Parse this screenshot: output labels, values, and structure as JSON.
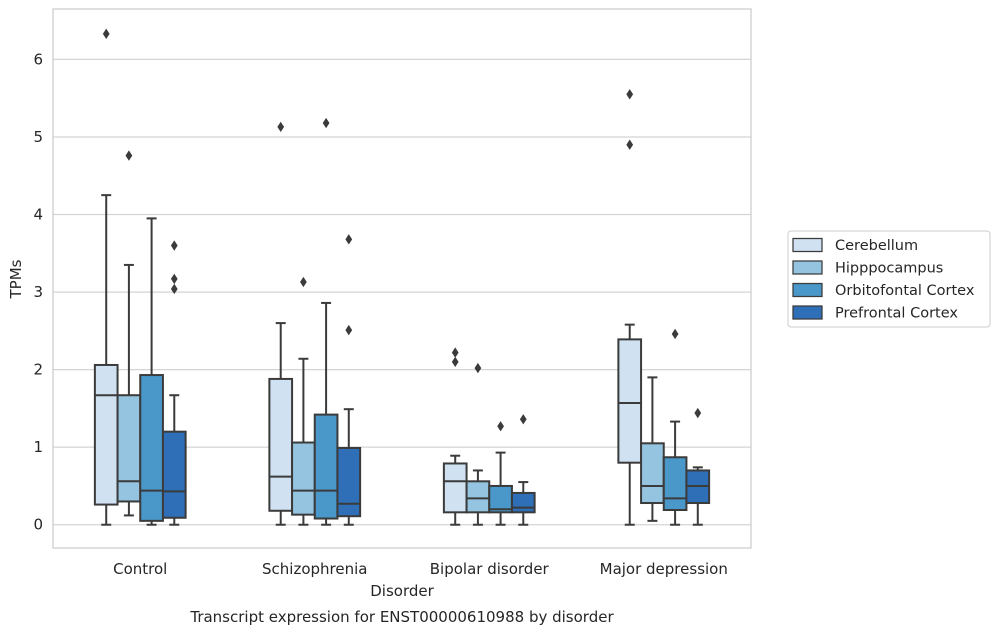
{
  "chart_data": {
    "type": "boxplot",
    "title": "",
    "caption": "Transcript expression for ENST00000610988 by disorder",
    "xlabel": "Disorder",
    "ylabel": "TPMs",
    "ylim": [
      -0.3,
      6.65
    ],
    "yticks": [
      0,
      1,
      2,
      3,
      4,
      5,
      6
    ],
    "grid": "horizontal",
    "legend_placement": "right",
    "categories": [
      "Control",
      "Schizophrenia",
      "Bipolar disorder",
      "Major depression"
    ],
    "series": [
      {
        "name": "Cerebellum",
        "color": "#d0e1f2",
        "boxes": [
          {
            "whislo": 0.0,
            "q1": 0.26,
            "med": 1.67,
            "q3": 2.06,
            "whishi": 4.25,
            "fliers": [
              6.33
            ]
          },
          {
            "whislo": 0.0,
            "q1": 0.18,
            "med": 0.62,
            "q3": 1.88,
            "whishi": 2.6,
            "fliers": [
              5.13
            ]
          },
          {
            "whislo": 0.0,
            "q1": 0.16,
            "med": 0.56,
            "q3": 0.79,
            "whishi": 0.89,
            "fliers": [
              2.22,
              2.1
            ]
          },
          {
            "whislo": 0.0,
            "q1": 0.8,
            "med": 1.57,
            "q3": 2.39,
            "whishi": 2.58,
            "fliers": [
              5.55,
              4.9
            ]
          }
        ]
      },
      {
        "name": "Hipppocampus",
        "color": "#94c4df",
        "boxes": [
          {
            "whislo": 0.12,
            "q1": 0.3,
            "med": 0.56,
            "q3": 1.67,
            "whishi": 3.35,
            "fliers": [
              4.76
            ]
          },
          {
            "whislo": 0.0,
            "q1": 0.13,
            "med": 0.44,
            "q3": 1.06,
            "whishi": 2.14,
            "fliers": [
              3.13
            ]
          },
          {
            "whislo": 0.0,
            "q1": 0.16,
            "med": 0.34,
            "q3": 0.56,
            "whishi": 0.7,
            "fliers": [
              2.02
            ]
          },
          {
            "whislo": 0.05,
            "q1": 0.28,
            "med": 0.5,
            "q3": 1.05,
            "whishi": 1.9,
            "fliers": []
          }
        ]
      },
      {
        "name": "Orbitofontal Cortex",
        "color": "#4a98c9",
        "boxes": [
          {
            "whislo": 0.0,
            "q1": 0.05,
            "med": 0.44,
            "q3": 1.93,
            "whishi": 3.95,
            "fliers": []
          },
          {
            "whislo": 0.0,
            "q1": 0.08,
            "med": 0.44,
            "q3": 1.42,
            "whishi": 2.86,
            "fliers": [
              5.18
            ]
          },
          {
            "whislo": 0.0,
            "q1": 0.16,
            "med": 0.2,
            "q3": 0.5,
            "whishi": 0.93,
            "fliers": [
              1.27
            ]
          },
          {
            "whislo": 0.0,
            "q1": 0.19,
            "med": 0.34,
            "q3": 0.87,
            "whishi": 1.33,
            "fliers": [
              2.46
            ]
          }
        ]
      },
      {
        "name": "Prefrontal Cortex",
        "color": "#2e6fb7",
        "boxes": [
          {
            "whislo": 0.0,
            "q1": 0.09,
            "med": 0.43,
            "q3": 1.2,
            "whishi": 1.67,
            "fliers": [
              3.6,
              3.17,
              3.04
            ]
          },
          {
            "whislo": 0.0,
            "q1": 0.11,
            "med": 0.27,
            "q3": 0.99,
            "whishi": 1.49,
            "fliers": [
              3.68,
              2.51
            ]
          },
          {
            "whislo": 0.0,
            "q1": 0.16,
            "med": 0.22,
            "q3": 0.41,
            "whishi": 0.55,
            "fliers": [
              1.36
            ]
          },
          {
            "whislo": 0.0,
            "q1": 0.28,
            "med": 0.5,
            "q3": 0.7,
            "whishi": 0.74,
            "fliers": [
              1.44
            ]
          }
        ]
      }
    ]
  }
}
